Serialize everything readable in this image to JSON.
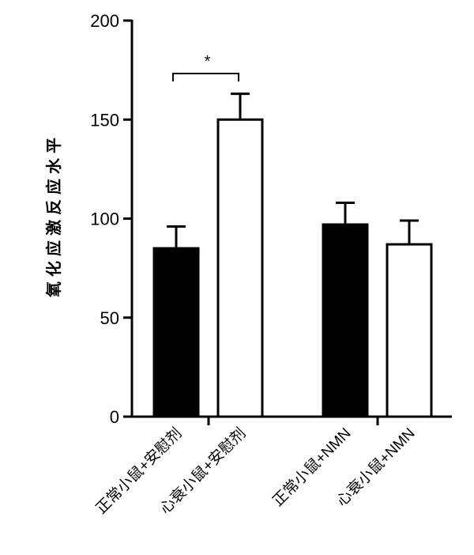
{
  "chart_data": {
    "type": "bar",
    "title": "",
    "xlabel": "",
    "ylabel": "氧化应激反应水平",
    "ylim": [
      0,
      200
    ],
    "yticks": [
      0,
      50,
      100,
      150,
      200
    ],
    "grid": false,
    "legend": "none",
    "categories": [
      "正常小鼠+安慰剂",
      "心衰小鼠+安慰剂",
      "正常小鼠+NMN",
      "心衰小鼠+NMN"
    ],
    "values": [
      85,
      150,
      97,
      87
    ],
    "errors": [
      11,
      13,
      11,
      12
    ],
    "fills": [
      "#000000",
      "#ffffff",
      "#000000",
      "#ffffff"
    ],
    "significance": [
      {
        "from": 0,
        "to": 1,
        "label": "*"
      }
    ]
  }
}
